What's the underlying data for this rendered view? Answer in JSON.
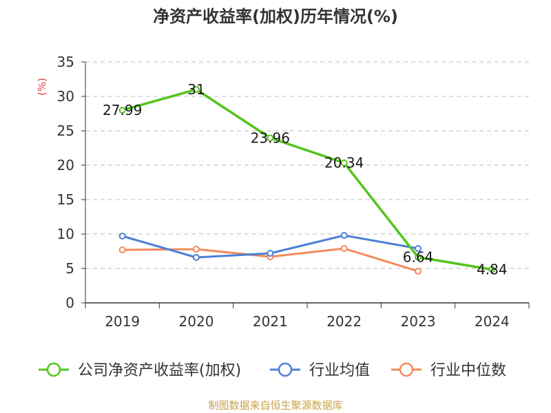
{
  "chart_data": {
    "type": "line",
    "title": "净资产收益率(加权)历年情况(%)",
    "ylabel": "(%)",
    "categories": [
      "2019",
      "2020",
      "2021",
      "2022",
      "2023",
      "2024"
    ],
    "ylim": [
      0,
      35
    ],
    "yticks": [
      0,
      5,
      10,
      15,
      20,
      25,
      30,
      35
    ],
    "grid": true,
    "legend_position": "bottom",
    "series": [
      {
        "name": "公司净资产收益率(加权)",
        "color": "#52c41a",
        "values": [
          27.99,
          31,
          23.96,
          20.34,
          6.64,
          4.84
        ],
        "labels": [
          "27.99",
          "31",
          "23.96",
          "20.34",
          "6.64",
          "4.84"
        ]
      },
      {
        "name": "行业均值",
        "color": "#4a7fd6",
        "values": [
          9.7,
          6.6,
          7.2,
          9.8,
          7.9,
          null
        ]
      },
      {
        "name": "行业中位数",
        "color": "#f28a5b",
        "values": [
          7.7,
          7.8,
          6.7,
          7.9,
          4.6,
          null
        ]
      }
    ],
    "source": "制图数据来自恒生聚源数据库"
  }
}
